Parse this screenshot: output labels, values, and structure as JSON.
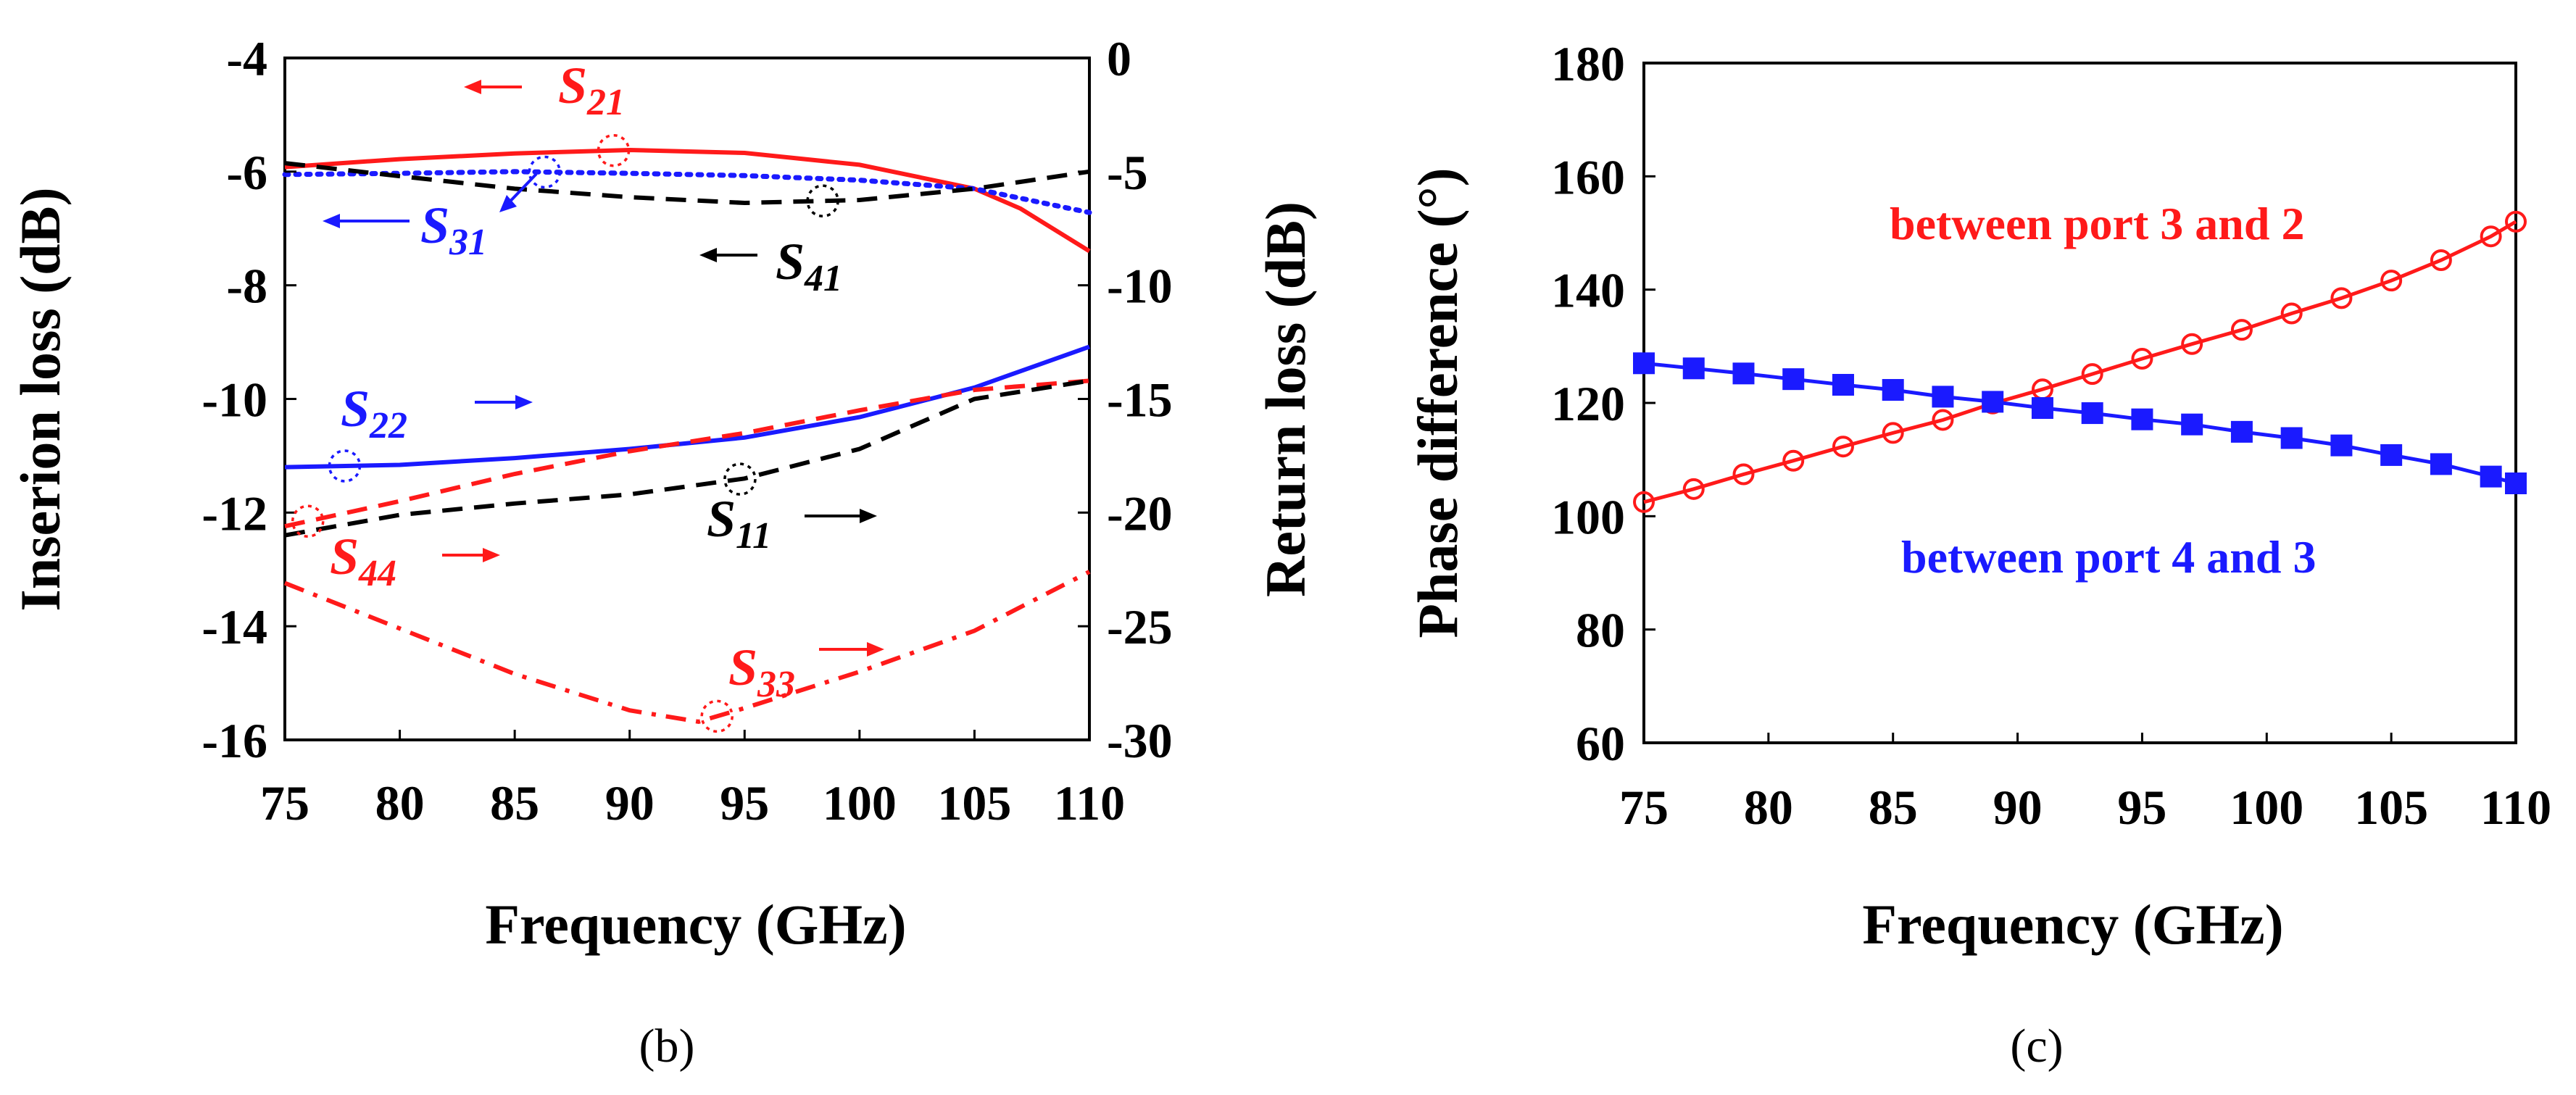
{
  "chart_data": [
    {
      "type": "line",
      "panel_label": "(b)",
      "xlabel": "Frequency (GHz)",
      "ylabel_left": "Inserion loss (dB)",
      "ylabel_right": "Return loss (dB)",
      "xlim": [
        75,
        110
      ],
      "ylim_left": [
        -16,
        -4
      ],
      "ylim_right": [
        -30,
        0
      ],
      "x_ticks": [
        "75",
        "80",
        "85",
        "90",
        "95",
        "100",
        "105",
        "110"
      ],
      "y_left_ticks": [
        "-4",
        "-6",
        "-8",
        "-10",
        "-12",
        "-14",
        "-16"
      ],
      "y_right_ticks": [
        "0",
        "-5",
        "-10",
        "-15",
        "-20",
        "-25",
        "-30"
      ],
      "colors": {
        "red": "#ff1a1a",
        "blue": "#1a1aff",
        "black": "#000000"
      },
      "series": [
        {
          "name": "S21",
          "sub": "21",
          "axis": "left",
          "color": "#ff1a1a",
          "style": "solid",
          "x": [
            75,
            80,
            85,
            90,
            95,
            100,
            105,
            107,
            110
          ],
          "y": [
            -5.92,
            -5.78,
            -5.68,
            -5.62,
            -5.67,
            -5.88,
            -6.3,
            -6.65,
            -7.4
          ]
        },
        {
          "name": "S31",
          "sub": "31",
          "axis": "left",
          "color": "#1a1aff",
          "style": "dotted",
          "x": [
            75,
            80,
            85,
            90,
            95,
            100,
            105,
            110
          ],
          "y": [
            -6.05,
            -6.03,
            -6.0,
            -6.03,
            -6.07,
            -6.15,
            -6.3,
            -6.72
          ]
        },
        {
          "name": "S41",
          "sub": "41",
          "axis": "left",
          "color": "#000000",
          "style": "dashed",
          "x": [
            75,
            80,
            85,
            90,
            95,
            100,
            105,
            110
          ],
          "y": [
            -5.85,
            -6.08,
            -6.3,
            -6.45,
            -6.55,
            -6.5,
            -6.3,
            -6.0
          ]
        },
        {
          "name": "S22",
          "sub": "22",
          "axis": "right",
          "color": "#1a1aff",
          "style": "solid",
          "x": [
            75,
            80,
            85,
            90,
            95,
            100,
            105,
            110
          ],
          "y": [
            -18.0,
            -17.9,
            -17.6,
            -17.2,
            -16.7,
            -15.8,
            -14.5,
            -12.7
          ]
        },
        {
          "name": "S44",
          "sub": "44",
          "axis": "right",
          "color": "#ff1a1a",
          "style": "dashed",
          "x": [
            75,
            80,
            85,
            90,
            95,
            100,
            105,
            110
          ],
          "y": [
            -20.6,
            -19.5,
            -18.3,
            -17.3,
            -16.5,
            -15.5,
            -14.6,
            -14.2
          ]
        },
        {
          "name": "S11",
          "sub": "11",
          "axis": "right",
          "color": "#000000",
          "style": "dashed",
          "x": [
            75,
            80,
            85,
            90,
            95,
            100,
            105,
            110
          ],
          "y": [
            -21.0,
            -20.1,
            -19.6,
            -19.2,
            -18.5,
            -17.2,
            -15.0,
            -14.2
          ]
        },
        {
          "name": "S33",
          "sub": "33",
          "axis": "right",
          "color": "#ff1a1a",
          "style": "dashdot",
          "x": [
            75,
            80,
            85,
            90,
            93,
            95,
            100,
            105,
            110
          ],
          "y": [
            -23.1,
            -25.1,
            -27.1,
            -28.7,
            -29.2,
            -28.6,
            -27.0,
            -25.2,
            -22.6
          ]
        }
      ],
      "annotations": [
        {
          "series": "S21",
          "arrow": "left",
          "marker_x": 89.3
        },
        {
          "series": "S31",
          "arrow": "left",
          "marker_x": 86.3
        },
        {
          "series": "S41",
          "arrow": "left",
          "marker_x": 98.4
        },
        {
          "series": "S22",
          "arrow": "right",
          "marker_x": 77.6
        },
        {
          "series": "S44",
          "arrow": "right",
          "marker_x": 76.0
        },
        {
          "series": "S11",
          "arrow": "right",
          "marker_x": 94.8
        },
        {
          "series": "S33",
          "arrow": "right",
          "marker_x": 93.8
        }
      ]
    },
    {
      "type": "line",
      "panel_label": "(c)",
      "xlabel": "Frequency (GHz)",
      "ylabel": "Phase difference (°)",
      "xlim": [
        75,
        110
      ],
      "ylim": [
        60,
        180
      ],
      "x_ticks": [
        "75",
        "80",
        "85",
        "90",
        "95",
        "100",
        "105",
        "110"
      ],
      "y_ticks": [
        "180",
        "160",
        "140",
        "120",
        "100",
        "80",
        "60"
      ],
      "series": [
        {
          "name": "between port 3 and 2",
          "color": "#ff1a1a",
          "marker": "circle-open",
          "x": [
            75,
            77,
            79,
            81,
            83,
            85,
            87,
            89,
            91,
            93,
            95,
            97,
            99,
            101,
            103,
            105,
            107,
            109,
            110
          ],
          "y": [
            102.5,
            104.8,
            107.4,
            109.8,
            112.3,
            114.7,
            117.0,
            119.9,
            122.4,
            125.1,
            127.8,
            130.4,
            132.9,
            135.8,
            138.5,
            141.6,
            145.2,
            149.4,
            152.0
          ]
        },
        {
          "name": "between port 4 and 3",
          "color": "#1a1aff",
          "marker": "square-filled",
          "x": [
            75,
            77,
            79,
            81,
            83,
            85,
            87,
            89,
            91,
            93,
            95,
            97,
            99,
            101,
            103,
            105,
            107,
            109,
            110
          ],
          "y": [
            127.0,
            126.1,
            125.2,
            124.2,
            123.2,
            122.3,
            121.1,
            120.2,
            119.1,
            118.2,
            117.1,
            116.2,
            114.9,
            113.8,
            112.5,
            110.8,
            109.2,
            107.0,
            105.8
          ]
        }
      ]
    }
  ]
}
